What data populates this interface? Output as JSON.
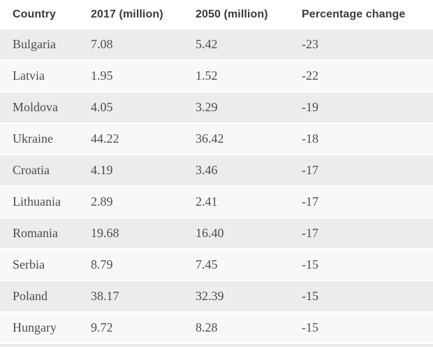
{
  "chart_data": {
    "type": "table",
    "columns": [
      "Country",
      "2017 (million)",
      "2050 (million)",
      "Percentage change"
    ],
    "rows": [
      [
        "Bulgaria",
        "7.08",
        "5.42",
        "-23"
      ],
      [
        "Latvia",
        "1.95",
        "1.52",
        "-22"
      ],
      [
        "Moldova",
        "4.05",
        "3.29",
        "-19"
      ],
      [
        "Ukraine",
        "44.22",
        "36.42",
        "-18"
      ],
      [
        "Croatia",
        "4.19",
        "3.46",
        "-17"
      ],
      [
        "Lithuania",
        "2.89",
        "2.41",
        "-17"
      ],
      [
        "Romania",
        "19.68",
        "16.40",
        "-17"
      ],
      [
        "Serbia",
        "8.79",
        "7.45",
        "-15"
      ],
      [
        "Poland",
        "38.17",
        "32.39",
        "-15"
      ],
      [
        "Hungary",
        "9.72",
        "8.28",
        "-15"
      ]
    ]
  },
  "colors": {
    "header_text": "#3b3b3b",
    "body_text": "#4d4d4d",
    "row_shaded": "#ececec",
    "row_plain": "#f8f8f8",
    "background": "#ffffff"
  }
}
